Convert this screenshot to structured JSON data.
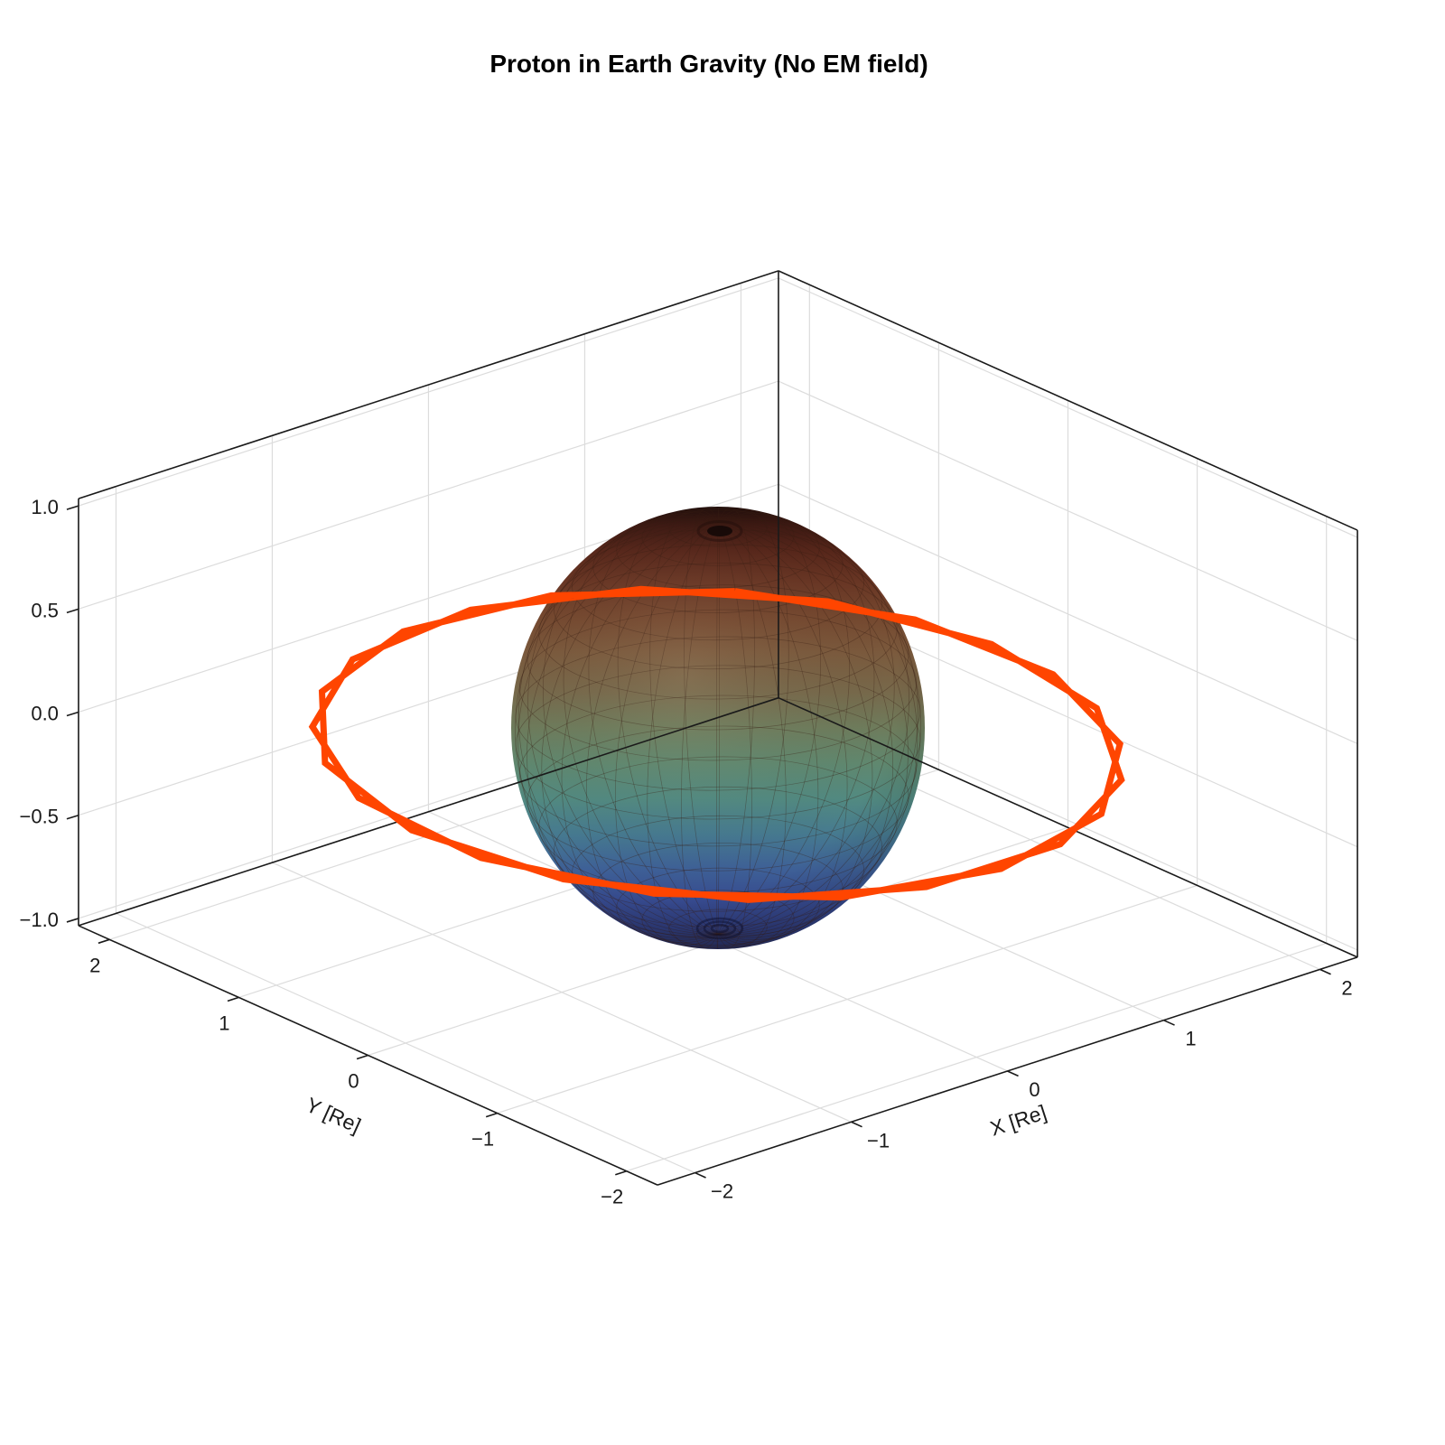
{
  "title": "Proton in Earth Gravity (No EM field)",
  "axes": {
    "x": {
      "label": "X [Re]",
      "tick_values": [
        -2,
        -1,
        0,
        1,
        2
      ],
      "tick_labels": [
        "−2",
        "−1",
        "0",
        "1",
        "2"
      ],
      "range": [
        -2.24,
        2.24
      ]
    },
    "y": {
      "label": "Y [Re]",
      "tick_values": [
        -2,
        -1,
        0,
        1,
        2
      ],
      "tick_labels": [
        "−2",
        "−1",
        "0",
        "1",
        "2"
      ],
      "range": [
        -2.24,
        2.24
      ]
    },
    "z": {
      "label": "",
      "tick_values": [
        -1,
        -0.5,
        0,
        0.5,
        1
      ],
      "tick_labels": [
        "−1.0",
        "−0.5",
        "0.0",
        "0.5",
        "1.0"
      ],
      "range": [
        -1.035,
        1.035
      ]
    }
  },
  "chart_data": {
    "type": "line",
    "subtype": "3d-trajectory",
    "title": "Proton in Earth Gravity (No EM field)",
    "grid": true,
    "legend": "none",
    "units": "Earth radii (Re)",
    "earth": {
      "radius_re": 1,
      "description": "wireframe-meshed sphere colored by height: dark red top, olive-green equator, dark blue bottom",
      "colormap_stops": [
        [
          0.0,
          "#200e0b"
        ],
        [
          0.04,
          "#3c1812"
        ],
        [
          0.1,
          "#57261a"
        ],
        [
          0.17,
          "#693624"
        ],
        [
          0.25,
          "#75482f"
        ],
        [
          0.33,
          "#7b5a3d"
        ],
        [
          0.42,
          "#77694b"
        ],
        [
          0.5,
          "#6e7c5c"
        ],
        [
          0.58,
          "#60886f"
        ],
        [
          0.66,
          "#528a81"
        ],
        [
          0.74,
          "#467a90"
        ],
        [
          0.82,
          "#3e6097"
        ],
        [
          0.89,
          "#364a8e"
        ],
        [
          0.95,
          "#2d3a77"
        ],
        [
          1.0,
          "#262e5c"
        ]
      ]
    },
    "trajectory": {
      "name": "proton orbit",
      "color": "#FF4500",
      "orbit_radius_re": 2.0,
      "n_orbits": 2,
      "points_xyz_re": [
        [
          1.338,
          1.486,
          -0.084
        ],
        [
          0.529,
          1.929,
          -0.03
        ],
        [
          -0.393,
          1.961,
          0.014
        ],
        [
          -1.231,
          1.576,
          0.037
        ],
        [
          -1.808,
          0.855,
          0.036
        ],
        [
          -1.999,
          -0.046,
          0.01
        ],
        [
          -1.766,
          -0.939,
          -0.035
        ],
        [
          -1.156,
          -1.632,
          -0.09
        ],
        [
          -0.301,
          -1.977,
          -0.142
        ],
        [
          0.618,
          -1.902,
          -0.182
        ],
        [
          1.406,
          -1.422,
          -0.199
        ],
        [
          1.895,
          -0.64,
          -0.192
        ],
        [
          1.981,
          0.278,
          -0.16
        ],
        [
          1.645,
          1.138,
          -0.112
        ],
        [
          0.959,
          1.755,
          -0.056
        ],
        [
          0.07,
          1.999,
          -0.006
        ],
        [
          -0.836,
          1.817,
          0.028
        ],
        [
          -1.562,
          1.25,
          0.04
        ],
        [
          -1.956,
          0.416,
          0.026
        ],
        [
          -1.935,
          -0.506,
          -0.011
        ],
        [
          -1.502,
          -1.321,
          -0.062
        ],
        [
          -0.749,
          -1.854,
          -0.117
        ],
        [
          0.163,
          -1.993,
          -0.164
        ],
        [
          1.041,
          -1.708,
          -0.194
        ],
        [
          1.696,
          -1.06,
          -0.199
        ],
        [
          1.991,
          -0.186,
          -0.179
        ],
        [
          1.863,
          0.728,
          -0.138
        ],
        [
          1.338,
          1.486,
          -0.084
        ]
      ]
    }
  },
  "colors": {
    "background": "#ffffff",
    "grid": "#dcdcdc",
    "box_edge": "#1a1a1a",
    "tick_text": "#1a1a1a",
    "trajectory": "#FF4500",
    "mesh_line": "rgba(55,28,18,0.38)"
  }
}
